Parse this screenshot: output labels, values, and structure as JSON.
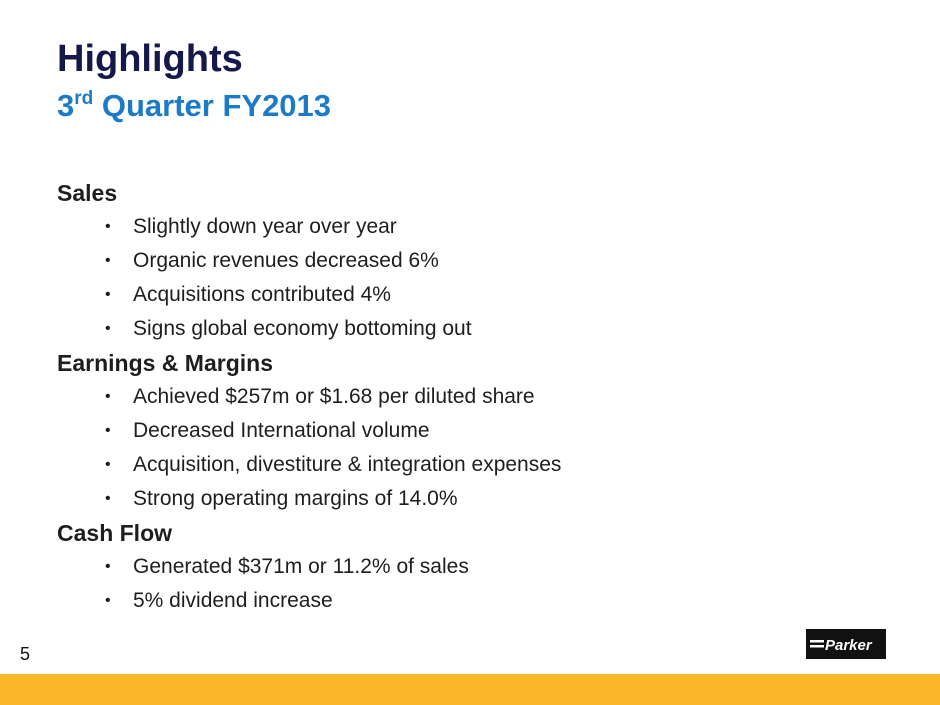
{
  "slide": {
    "title": "Highlights",
    "subtitle": {
      "ordinal": "3",
      "suffix": "rd",
      "rest": " Quarter FY2013"
    },
    "sections": [
      {
        "heading": "Sales",
        "bullets": [
          "Slightly down year over year",
          "Organic revenues decreased 6%",
          "Acquisitions contributed 4%",
          "Signs global economy bottoming out"
        ]
      },
      {
        "heading": "Earnings & Margins",
        "bullets": [
          "Achieved $257m or $1.68 per diluted share",
          "Decreased International volume",
          "Acquisition, divestiture & integration expenses",
          "Strong operating margins of 14.0%"
        ]
      },
      {
        "heading": "Cash Flow",
        "bullets": [
          "Generated $371m or 11.2% of sales",
          "5% dividend increase"
        ]
      }
    ],
    "bullet_glyph": "•",
    "page_number": "5",
    "logo_text": "Parker"
  },
  "colors": {
    "title": "#14184a",
    "subtitle": "#1b7bc8",
    "footer_bar": "#fbb72a",
    "logo_bg": "#111111"
  }
}
